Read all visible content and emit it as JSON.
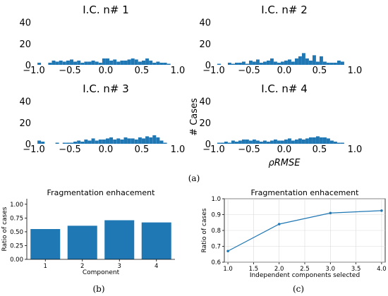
{
  "figure": {
    "panel_labels": [
      "(a)",
      "(b)",
      "(c)"
    ]
  },
  "chart_data": [
    {
      "type": "bar",
      "panel": "a",
      "title": "I.C. n# 1",
      "xlabel": "",
      "ylabel": "",
      "xlim": [
        -1.0,
        1.0
      ],
      "ylim": [
        0,
        45
      ],
      "xticks": [
        "−1.0",
        "−0.5",
        "0.0",
        "0.5",
        "1.0"
      ],
      "yticks": [
        "0",
        "20",
        "40"
      ],
      "bin_width": 0.05,
      "x": [
        -0.925,
        -0.775,
        -0.725,
        -0.675,
        -0.625,
        -0.575,
        -0.525,
        -0.475,
        -0.425,
        -0.375,
        -0.325,
        -0.275,
        -0.225,
        -0.175,
        -0.125,
        -0.075,
        -0.025,
        0.025,
        0.075,
        0.125,
        0.175,
        0.225,
        0.275,
        0.325,
        0.375,
        0.425,
        0.475,
        0.525,
        0.575,
        0.625,
        0.675,
        0.725,
        0.775,
        0.825,
        0.875
      ],
      "values": [
        2,
        2,
        4,
        3,
        4,
        3,
        4,
        5,
        3,
        4,
        2,
        3,
        3,
        4,
        3,
        2,
        6,
        6,
        4,
        5,
        3,
        4,
        4,
        5,
        6,
        5,
        3,
        4,
        6,
        4,
        2,
        3,
        2,
        2,
        1
      ],
      "color": "#1f77b4"
    },
    {
      "type": "bar",
      "panel": "a",
      "title": "I.C. n# 2",
      "xlabel": "",
      "ylabel": "",
      "xlim": [
        -1.0,
        1.0
      ],
      "ylim": [
        0,
        45
      ],
      "xticks": [
        "−1.0",
        "−0.5",
        "0.0",
        "0.5",
        "1.0"
      ],
      "yticks": [
        "0",
        "20",
        "40"
      ],
      "bin_width": 0.05,
      "x": [
        -0.925,
        -0.775,
        -0.725,
        -0.675,
        -0.625,
        -0.575,
        -0.525,
        -0.475,
        -0.425,
        -0.375,
        -0.325,
        -0.275,
        -0.225,
        -0.175,
        -0.125,
        -0.075,
        -0.025,
        0.025,
        0.075,
        0.125,
        0.175,
        0.225,
        0.275,
        0.325,
        0.375,
        0.425,
        0.475,
        0.525,
        0.575,
        0.625,
        0.675,
        0.725,
        0.775,
        0.825
      ],
      "values": [
        1,
        2,
        1,
        2,
        2,
        3,
        1,
        4,
        3,
        5,
        2,
        3,
        4,
        6,
        3,
        2,
        3,
        4,
        5,
        3,
        6,
        8,
        11,
        6,
        4,
        9,
        3,
        8,
        3,
        2,
        2,
        2,
        4,
        3
      ],
      "color": "#1f77b4"
    },
    {
      "type": "bar",
      "panel": "a",
      "title": "I.C. n# 3",
      "xlabel": "",
      "ylabel": "",
      "xlim": [
        -1.0,
        1.0
      ],
      "ylim": [
        0,
        45
      ],
      "xticks": [
        "−1.0",
        "−0.5",
        "0.0",
        "0.5",
        "1.0"
      ],
      "yticks": [
        "0",
        "20",
        "40"
      ],
      "bin_width": 0.05,
      "x": [
        -0.925,
        -0.875,
        -0.675,
        -0.575,
        -0.525,
        -0.475,
        -0.425,
        -0.375,
        -0.325,
        -0.275,
        -0.225,
        -0.175,
        -0.125,
        -0.075,
        -0.025,
        0.025,
        0.075,
        0.125,
        0.175,
        0.225,
        0.275,
        0.325,
        0.375,
        0.425,
        0.475,
        0.525,
        0.575,
        0.625,
        0.675,
        0.725,
        0.775,
        0.825
      ],
      "values": [
        3,
        2,
        1,
        1,
        1,
        1,
        2,
        3,
        2,
        4,
        3,
        5,
        3,
        4,
        4,
        5,
        6,
        4,
        5,
        4,
        6,
        5,
        5,
        4,
        6,
        5,
        7,
        6,
        8,
        6,
        3,
        1
      ],
      "color": "#1f77b4"
    },
    {
      "type": "bar",
      "panel": "a",
      "title": "I.C. n# 4",
      "xlabel": "ρRMSE",
      "ylabel": "# Cases",
      "xlim": [
        -1.0,
        1.0
      ],
      "ylim": [
        0,
        45
      ],
      "xticks": [
        "−1.0",
        "−0.5",
        "0.0",
        "0.5",
        "1.0"
      ],
      "yticks": [
        "0",
        "20",
        "40"
      ],
      "bin_width": 0.05,
      "x": [
        -0.925,
        -0.875,
        -0.825,
        -0.775,
        -0.725,
        -0.675,
        -0.625,
        -0.575,
        -0.525,
        -0.475,
        -0.425,
        -0.375,
        -0.325,
        -0.275,
        -0.225,
        -0.175,
        -0.125,
        -0.075,
        -0.025,
        0.025,
        0.075,
        0.125,
        0.175,
        0.225,
        0.275,
        0.325,
        0.375,
        0.425,
        0.475,
        0.525,
        0.575,
        0.625,
        0.675,
        0.725,
        0.775,
        0.825
      ],
      "values": [
        1,
        1,
        2,
        1,
        3,
        2,
        3,
        4,
        4,
        3,
        4,
        3,
        2,
        3,
        2,
        3,
        4,
        3,
        3,
        4,
        5,
        3,
        4,
        5,
        4,
        5,
        6,
        6,
        7,
        6,
        6,
        5,
        3,
        2,
        1,
        1
      ],
      "color": "#1f77b4"
    },
    {
      "type": "bar",
      "panel": "b",
      "title": "Fragmentation enhacement",
      "xlabel": "Component",
      "ylabel": "Ratio of cases",
      "categories": [
        "1",
        "2",
        "3",
        "4"
      ],
      "values": [
        0.55,
        0.61,
        0.71,
        0.67
      ],
      "ylim": [
        0,
        1.1
      ],
      "yticks": [
        "0.00",
        "0.25",
        "0.50",
        "0.75",
        "1.00"
      ],
      "color": "#1f77b4"
    },
    {
      "type": "line",
      "panel": "c",
      "title": "Fragmentation enhacement",
      "xlabel": "Independent components selected",
      "ylabel": "Ratio of cases",
      "x": [
        1.0,
        2.0,
        3.0,
        4.0
      ],
      "values": [
        0.67,
        0.84,
        0.91,
        0.925
      ],
      "xlim": [
        0.93,
        4.07
      ],
      "ylim": [
        0.6,
        1.0
      ],
      "xticks": [
        "1.0",
        "1.5",
        "2.0",
        "2.5",
        "3.0",
        "3.5",
        "4.0"
      ],
      "yticks": [
        "0.6",
        "0.7",
        "0.8",
        "0.9",
        "1.0"
      ],
      "grid": true,
      "color": "#1f77b4"
    }
  ]
}
